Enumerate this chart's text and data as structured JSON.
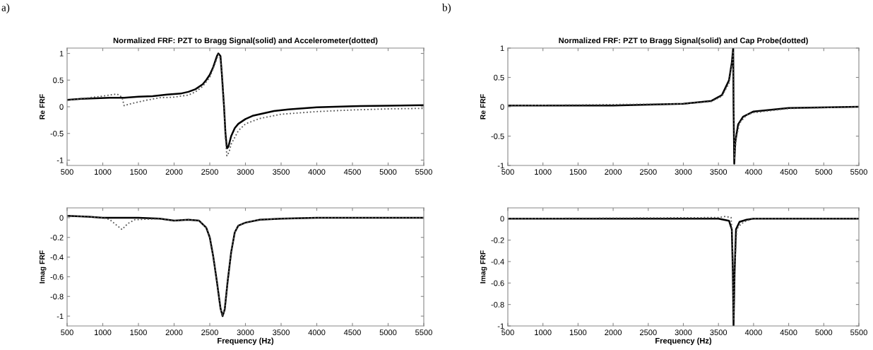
{
  "chart_data": [
    {
      "type": "line",
      "title": "Normalized FRF: PZT to Bragg Signal(solid) and Accelerometer(dotted)",
      "ylabel": "Re FRF",
      "annotations": [
        "a)"
      ],
      "xlim": [
        500,
        5500
      ],
      "xticks": [
        500,
        1000,
        1500,
        2000,
        2500,
        3000,
        3500,
        4000,
        4500,
        5000,
        5500
      ],
      "ylim": [
        -1.1,
        1.1
      ],
      "yticks": [
        -1,
        -0.5,
        0,
        0.5,
        1
      ],
      "series": [
        {
          "color": "#000000",
          "line_style": "solid",
          "x": [
            500,
            700,
            900,
            1100,
            1300,
            1500,
            1700,
            1900,
            2100,
            2200,
            2300,
            2400,
            2450,
            2500,
            2550,
            2600,
            2620,
            2650,
            2670,
            2700,
            2720,
            2740,
            2760,
            2800,
            2850,
            2900,
            3000,
            3100,
            3200,
            3400,
            3600,
            3800,
            4000,
            4500,
            5000,
            5500
          ],
          "values": [
            0.13,
            0.15,
            0.16,
            0.17,
            0.17,
            0.19,
            0.2,
            0.23,
            0.25,
            0.28,
            0.33,
            0.42,
            0.5,
            0.6,
            0.75,
            0.95,
            1.0,
            0.95,
            0.6,
            0.0,
            -0.5,
            -0.78,
            -0.75,
            -0.55,
            -0.4,
            -0.32,
            -0.23,
            -0.17,
            -0.14,
            -0.08,
            -0.05,
            -0.03,
            -0.01,
            0.01,
            0.02,
            0.03
          ]
        },
        {
          "color": "#555555",
          "line_style": "dotted",
          "x": [
            500,
            1000,
            1200,
            1270,
            1300,
            1400,
            1600,
            1800,
            2000,
            2200,
            2300,
            2400,
            2500,
            2600,
            2620,
            2650,
            2680,
            2700,
            2720,
            2740,
            2770,
            2800,
            2900,
            3000,
            3200,
            3500,
            4000,
            4500,
            5000,
            5500
          ],
          "values": [
            0.12,
            0.2,
            0.24,
            0.18,
            0.02,
            0.06,
            0.12,
            0.17,
            0.18,
            0.22,
            0.28,
            0.38,
            0.55,
            0.9,
            0.98,
            0.9,
            0.5,
            0.0,
            -0.6,
            -0.92,
            -0.85,
            -0.7,
            -0.45,
            -0.32,
            -0.22,
            -0.14,
            -0.09,
            -0.06,
            -0.04,
            -0.03
          ]
        }
      ]
    },
    {
      "type": "line",
      "xlabel": "Frequency (Hz)",
      "ylabel": "Imag FRF",
      "xlim": [
        500,
        5500
      ],
      "xticks": [
        500,
        1000,
        1500,
        2000,
        2500,
        3000,
        3500,
        4000,
        4500,
        5000,
        5500
      ],
      "ylim": [
        -1.1,
        0.1
      ],
      "yticks": [
        -1,
        -0.8,
        -0.6,
        -0.4,
        -0.2,
        0
      ],
      "series": [
        {
          "color": "#000000",
          "line_style": "solid",
          "x": [
            500,
            800,
            1000,
            1200,
            1500,
            1800,
            2000,
            2200,
            2350,
            2450,
            2500,
            2550,
            2600,
            2650,
            2680,
            2710,
            2750,
            2800,
            2850,
            2900,
            3000,
            3200,
            3500,
            4000,
            5500
          ],
          "values": [
            0.02,
            0.01,
            0.0,
            0.0,
            0.0,
            -0.01,
            -0.03,
            -0.02,
            -0.03,
            -0.1,
            -0.2,
            -0.4,
            -0.65,
            -0.92,
            -1.0,
            -0.93,
            -0.65,
            -0.35,
            -0.15,
            -0.08,
            -0.05,
            -0.02,
            -0.01,
            0.0,
            0.0
          ]
        },
        {
          "color": "#555555",
          "line_style": "dotted",
          "x": [
            500,
            800,
            1000,
            1100,
            1200,
            1270,
            1350,
            1450,
            1800,
            2000,
            2200,
            2350,
            2450,
            2500,
            2550,
            2600,
            2650,
            2680,
            2710,
            2750,
            2800,
            2850,
            2900,
            3000,
            3200,
            3500,
            4000,
            5500
          ],
          "values": [
            0.02,
            0.01,
            0.0,
            -0.02,
            -0.08,
            -0.12,
            -0.06,
            -0.02,
            -0.01,
            -0.03,
            -0.02,
            -0.03,
            -0.1,
            -0.2,
            -0.4,
            -0.65,
            -0.92,
            -1.0,
            -0.93,
            -0.65,
            -0.35,
            -0.15,
            -0.08,
            -0.05,
            -0.02,
            -0.01,
            0.0,
            0.0
          ]
        }
      ]
    },
    {
      "type": "line",
      "title": "Normalized FRF: PZT to Bragg Signal(solid) and Cap Probe(dotted)",
      "ylabel": "Re FRF",
      "annotations": [
        "b)"
      ],
      "xlim": [
        500,
        5500
      ],
      "xticks": [
        500,
        1000,
        1500,
        2000,
        2500,
        3000,
        3500,
        4000,
        4500,
        5000,
        5500
      ],
      "ylim": [
        -1,
        1
      ],
      "yticks": [
        -1,
        -0.5,
        0,
        0.5,
        1
      ],
      "series": [
        {
          "color": "#000000",
          "line_style": "solid",
          "x": [
            500,
            2000,
            3000,
            3400,
            3550,
            3650,
            3690,
            3710,
            3715,
            3725,
            3740,
            3780,
            3850,
            4000,
            4500,
            5500
          ],
          "values": [
            0.02,
            0.02,
            0.05,
            0.1,
            0.2,
            0.45,
            0.75,
            1.0,
            0.0,
            -0.97,
            -0.6,
            -0.3,
            -0.17,
            -0.08,
            -0.02,
            0.0
          ]
        },
        {
          "color": "#555555",
          "line_style": "dotted",
          "x": [
            500,
            3000,
            3400,
            3550,
            3650,
            3690,
            3710,
            3720,
            3730,
            3750,
            3800,
            3900,
            4000,
            4500,
            5500
          ],
          "values": [
            0.02,
            0.05,
            0.09,
            0.18,
            0.4,
            0.7,
            0.95,
            0.0,
            -0.9,
            -0.55,
            -0.28,
            -0.14,
            -0.1,
            -0.03,
            0.0
          ]
        }
      ]
    },
    {
      "type": "line",
      "xlabel": "Frequency (Hz)",
      "ylabel": "Imag FRF",
      "xlim": [
        500,
        5500
      ],
      "xticks": [
        500,
        1000,
        1500,
        2000,
        2500,
        3000,
        3500,
        4000,
        4500,
        5000,
        5500
      ],
      "ylim": [
        -1,
        0.1
      ],
      "yticks": [
        -1,
        -0.8,
        -0.6,
        -0.4,
        -0.2,
        0
      ],
      "series": [
        {
          "color": "#000000",
          "line_style": "solid",
          "x": [
            500,
            3500,
            3650,
            3690,
            3705,
            3715,
            3730,
            3750,
            3800,
            3900,
            4000,
            5500
          ],
          "values": [
            0.0,
            0.0,
            -0.02,
            -0.1,
            -0.5,
            -1.0,
            -0.5,
            -0.1,
            -0.03,
            -0.01,
            0.0,
            0.0
          ]
        },
        {
          "color": "#555555",
          "line_style": "dotted",
          "x": [
            500,
            3500,
            3600,
            3680,
            3700,
            3715,
            3735,
            3760,
            3820,
            3900,
            4000,
            5500
          ],
          "values": [
            0.0,
            0.01,
            0.02,
            0.01,
            -0.2,
            -0.95,
            -0.4,
            -0.1,
            -0.05,
            -0.02,
            0.0,
            0.0
          ]
        }
      ]
    }
  ]
}
